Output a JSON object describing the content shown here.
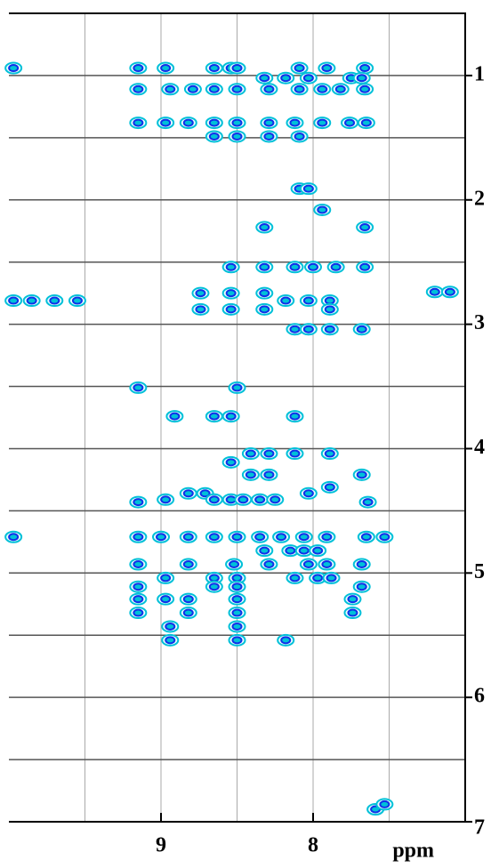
{
  "chart_data": {
    "type": "contour",
    "xlabel": "ppm",
    "xlim": [
      10,
      7
    ],
    "ylim": [
      0.5,
      7
    ],
    "xticks": [
      9,
      8
    ],
    "xgrid": [
      9.5,
      9,
      8.5,
      8,
      7.5
    ],
    "yticks": [
      1,
      2,
      3,
      4,
      5,
      6,
      7
    ],
    "ygrid": [
      1,
      1.5,
      2,
      2.5,
      3,
      3.5,
      4,
      4.5,
      5,
      5.5,
      6,
      6.5
    ],
    "outline_color": "#00c0d8",
    "core_color": "#1030e8",
    "grid": true,
    "x": [
      9.15,
      8.97,
      8.65,
      8.54,
      8.5,
      8.09,
      7.91,
      7.66,
      8.32,
      8.18,
      8.03,
      7.75,
      7.68,
      9.15,
      8.94,
      8.79,
      8.65,
      8.5,
      8.29,
      8.09,
      7.94,
      7.82,
      7.66,
      9.15,
      8.97,
      8.82,
      8.65,
      8.5,
      8.29,
      8.12,
      7.94,
      7.76,
      7.65,
      8.65,
      8.5,
      8.29,
      8.09,
      8.09,
      8.03,
      7.94,
      8.32,
      7.66,
      8.54,
      8.32,
      8.12,
      8.0,
      7.85,
      7.66,
      8.74,
      8.54,
      8.32,
      8.18,
      8.03,
      7.89,
      8.74,
      8.54,
      8.32,
      7.89,
      8.12,
      8.03,
      7.89,
      7.68,
      9.15,
      8.5,
      8.91,
      8.65,
      8.54,
      8.12,
      8.41,
      8.29,
      8.12,
      7.89,
      8.54,
      8.41,
      8.29,
      7.68,
      7.89,
      8.82,
      8.71,
      8.03,
      8.97,
      8.65,
      8.54,
      8.46,
      8.35,
      8.25,
      9.15,
      7.64,
      9.15,
      9.0,
      8.82,
      8.65,
      8.5,
      8.35,
      8.21,
      8.06,
      7.91,
      7.65,
      7.53,
      8.32,
      8.15,
      8.06,
      7.97,
      9.15,
      8.82,
      8.52,
      8.29,
      8.03,
      7.91,
      7.68,
      8.97,
      8.65,
      8.5,
      8.12,
      7.97,
      7.88,
      9.15,
      8.65,
      8.5,
      7.68,
      9.15,
      8.97,
      8.82,
      8.5,
      7.74,
      9.15,
      8.82,
      8.5,
      7.74,
      8.94,
      8.5,
      8.94,
      8.5,
      8.18,
      7.59,
      7.53,
      9.97,
      9.85,
      9.7,
      9.55,
      7.2,
      7.1,
      9.97,
      9.97
    ],
    "values": [
      0.94,
      0.94,
      0.94,
      0.94,
      0.94,
      0.94,
      0.94,
      0.94,
      1.02,
      1.02,
      1.02,
      1.02,
      1.02,
      1.11,
      1.11,
      1.11,
      1.11,
      1.11,
      1.11,
      1.11,
      1.11,
      1.11,
      1.11,
      1.38,
      1.38,
      1.38,
      1.38,
      1.38,
      1.38,
      1.38,
      1.38,
      1.38,
      1.38,
      1.49,
      1.49,
      1.49,
      1.49,
      1.91,
      1.91,
      2.08,
      2.22,
      2.22,
      2.54,
      2.54,
      2.54,
      2.54,
      2.54,
      2.54,
      2.75,
      2.75,
      2.75,
      2.81,
      2.81,
      2.81,
      2.88,
      2.88,
      2.88,
      2.88,
      3.04,
      3.04,
      3.04,
      3.04,
      3.51,
      3.51,
      3.74,
      3.74,
      3.74,
      3.74,
      4.04,
      4.04,
      4.04,
      4.04,
      4.11,
      4.21,
      4.21,
      4.21,
      4.31,
      4.36,
      4.36,
      4.36,
      4.41,
      4.41,
      4.41,
      4.41,
      4.41,
      4.41,
      4.43,
      4.43,
      4.71,
      4.71,
      4.71,
      4.71,
      4.71,
      4.71,
      4.71,
      4.71,
      4.71,
      4.71,
      4.71,
      4.82,
      4.82,
      4.82,
      4.82,
      4.93,
      4.93,
      4.93,
      4.93,
      4.93,
      4.93,
      4.93,
      5.04,
      5.04,
      5.04,
      5.04,
      5.04,
      5.04,
      5.11,
      5.11,
      5.11,
      5.11,
      5.21,
      5.21,
      5.21,
      5.21,
      5.21,
      5.32,
      5.32,
      5.32,
      5.32,
      5.43,
      5.43,
      5.54,
      5.54,
      5.54,
      6.9,
      6.86,
      2.81,
      2.81,
      2.81,
      2.81,
      2.74,
      2.74,
      0.94,
      4.71
    ]
  }
}
